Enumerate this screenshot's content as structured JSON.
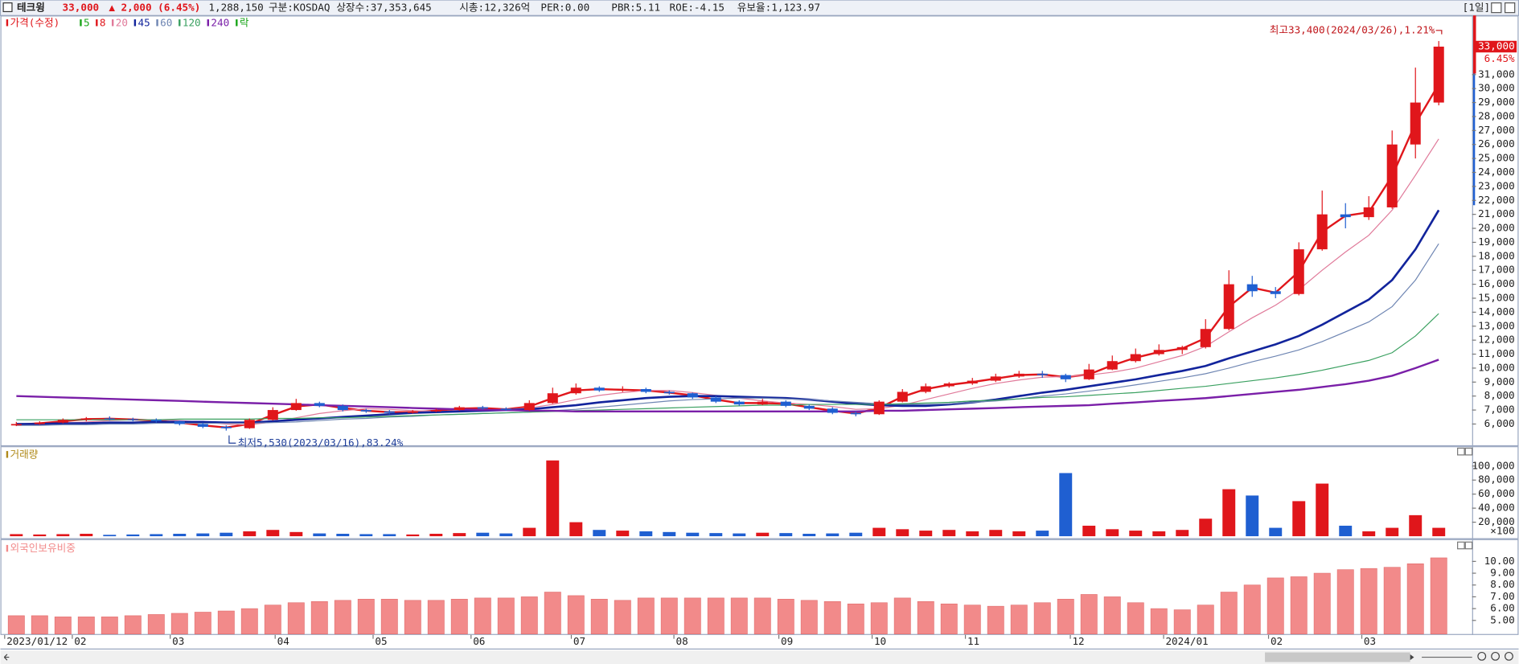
{
  "header": {
    "name": "테크윙",
    "price": "33,000",
    "change": "▲ 2,000 (6.45%)",
    "volume": "1,288,150",
    "market": "구분:KOSDAQ",
    "shares": "상장수:37,353,645",
    "cap": "시총:12,326억",
    "per": "PER:0.00",
    "pbr": "PBR:5.11",
    "roe": "ROE:-4.15",
    "reserve": "유보율:1,123.97",
    "period": "[1일]"
  },
  "chart_data": [
    {
      "type": "candlestick",
      "candles": {
        "name": "가격(수정)",
        "up_color": "#e0161b",
        "down_color": "#1f5fd1",
        "open": [
          5900,
          6000,
          6100,
          6300,
          6400,
          6350,
          6300,
          6200,
          6000,
          5800,
          5700,
          6300,
          7000,
          7500,
          7300,
          7000,
          6900,
          6800,
          6900,
          7000,
          7200,
          7100,
          7000,
          7500,
          8200,
          8600,
          8400,
          8500,
          8300,
          8200,
          7900,
          7600,
          7400,
          7600,
          7300,
          7100,
          6800,
          6700,
          7600,
          8300,
          8700,
          8900,
          9100,
          9400,
          9600,
          9500,
          9200,
          9900,
          10500,
          11000,
          11300,
          11500,
          12800,
          16000,
          15500,
          15300,
          18500,
          21000,
          20800,
          21500,
          26000,
          29000
        ],
        "high": [
          6150,
          6200,
          6400,
          6500,
          6550,
          6450,
          6400,
          6250,
          6100,
          5900,
          6400,
          7200,
          7800,
          7600,
          7400,
          7100,
          7000,
          7000,
          7100,
          7300,
          7300,
          7200,
          7700,
          8600,
          8900,
          8700,
          8700,
          8600,
          8400,
          8250,
          8000,
          7700,
          7800,
          7700,
          7400,
          7200,
          6900,
          7700,
          8500,
          8900,
          9000,
          9300,
          9600,
          9800,
          9800,
          9600,
          10300,
          10900,
          11400,
          11700,
          11600,
          13500,
          17000,
          16600,
          15800,
          19000,
          22700,
          21800,
          22300,
          27000,
          31500,
          33400
        ],
        "low": [
          5850,
          5950,
          6050,
          6200,
          6250,
          6200,
          6100,
          5900,
          5700,
          5530,
          5650,
          6250,
          6950,
          7200,
          6900,
          6800,
          6700,
          6750,
          6850,
          6950,
          7000,
          6950,
          6950,
          7450,
          8100,
          8300,
          8300,
          8200,
          8100,
          7800,
          7500,
          7300,
          7350,
          7200,
          7000,
          6700,
          6550,
          6650,
          7550,
          8200,
          8600,
          8800,
          9000,
          9300,
          9300,
          9000,
          9150,
          9850,
          10400,
          10900,
          11000,
          11400,
          12700,
          15100,
          15000,
          15200,
          18400,
          20000,
          20600,
          21400,
          25000,
          28800
        ],
        "close": [
          6000,
          6100,
          6300,
          6400,
          6350,
          6300,
          6200,
          6000,
          5800,
          5700,
          6300,
          7000,
          7500,
          7300,
          7000,
          6900,
          6800,
          6900,
          7000,
          7200,
          7100,
          7000,
          7500,
          8200,
          8600,
          8400,
          8500,
          8300,
          8200,
          7900,
          7600,
          7400,
          7600,
          7300,
          7100,
          6800,
          6700,
          7600,
          8300,
          8700,
          8900,
          9100,
          9400,
          9600,
          9500,
          9200,
          9900,
          10500,
          11000,
          11300,
          11500,
          12800,
          16000,
          15500,
          15300,
          18500,
          21000,
          20800,
          21500,
          26000,
          29000,
          33000
        ]
      },
      "series": [
        {
          "name": "5",
          "color": "#1aa51a"
        },
        {
          "name": "8",
          "color": "#e0161b",
          "width": 2,
          "values": [
            5950,
            6050,
            6200,
            6350,
            6380,
            6320,
            6250,
            6100,
            5900,
            5750,
            6000,
            6650,
            7250,
            7400,
            7150,
            6950,
            6850,
            6850,
            6950,
            7100,
            7150,
            7050,
            7250,
            7850,
            8400,
            8500,
            8450,
            8400,
            8250,
            8050,
            7750,
            7500,
            7500,
            7450,
            7200,
            6950,
            6750,
            7150,
            7950,
            8500,
            8800,
            9000,
            9250,
            9500,
            9550,
            9350,
            9550,
            10200,
            10750,
            11150,
            11400,
            12150,
            14400,
            15750,
            15400,
            16900,
            19750,
            20900,
            21150,
            23750,
            27500,
            30300
          ]
        },
        {
          "name": "20",
          "color": "#e07a9a",
          "width": 1,
          "values": [
            6000,
            6000,
            6050,
            6150,
            6250,
            6300,
            6300,
            6250,
            6150,
            6000,
            5950,
            6150,
            6450,
            6750,
            6950,
            7100,
            7050,
            6950,
            6900,
            6950,
            7000,
            7050,
            7150,
            7400,
            7750,
            8050,
            8250,
            8400,
            8400,
            8250,
            8050,
            7850,
            7650,
            7500,
            7400,
            7250,
            7050,
            7100,
            7350,
            7750,
            8150,
            8550,
            8900,
            9150,
            9350,
            9400,
            9500,
            9700,
            10000,
            10450,
            10900,
            11550,
            12600,
            13600,
            14500,
            15600,
            17000,
            18300,
            19500,
            21300,
            23800,
            26400
          ]
        },
        {
          "name": "45",
          "color": "#12249c",
          "width": 2.2,
          "values": [
            6000,
            6000,
            6050,
            6050,
            6100,
            6100,
            6150,
            6150,
            6150,
            6100,
            6100,
            6200,
            6300,
            6400,
            6500,
            6600,
            6700,
            6800,
            6850,
            6900,
            6950,
            7000,
            7050,
            7200,
            7350,
            7550,
            7700,
            7850,
            7950,
            8000,
            8000,
            7950,
            7900,
            7850,
            7750,
            7600,
            7450,
            7350,
            7300,
            7300,
            7400,
            7550,
            7750,
            8000,
            8250,
            8450,
            8700,
            8950,
            9200,
            9500,
            9800,
            10150,
            10700,
            11200,
            11700,
            12300,
            13100,
            14000,
            14900,
            16300,
            18500,
            21300
          ]
        },
        {
          "name": "60",
          "color": "#6f86b3",
          "width": 1,
          "values": [
            5900,
            5900,
            5950,
            5950,
            6000,
            6000,
            6050,
            6050,
            6050,
            6050,
            6050,
            6100,
            6150,
            6250,
            6350,
            6400,
            6500,
            6550,
            6650,
            6700,
            6750,
            6800,
            6850,
            6950,
            7050,
            7200,
            7350,
            7500,
            7650,
            7750,
            7800,
            7850,
            7850,
            7800,
            7750,
            7650,
            7550,
            7450,
            7400,
            7400,
            7450,
            7550,
            7650,
            7800,
            8000,
            8150,
            8350,
            8550,
            8800,
            9050,
            9300,
            9600,
            10000,
            10450,
            10850,
            11300,
            11900,
            12600,
            13300,
            14400,
            16300,
            18900
          ]
        },
        {
          "name": "120",
          "color": "#3aa060",
          "width": 1,
          "values": [
            6300,
            6300,
            6300,
            6300,
            6300,
            6300,
            6300,
            6350,
            6350,
            6350,
            6350,
            6400,
            6400,
            6450,
            6450,
            6500,
            6550,
            6600,
            6650,
            6700,
            6750,
            6800,
            6850,
            6900,
            6950,
            7000,
            7050,
            7100,
            7150,
            7200,
            7250,
            7300,
            7350,
            7350,
            7400,
            7400,
            7400,
            7400,
            7450,
            7500,
            7550,
            7650,
            7700,
            7800,
            7900,
            7950,
            8050,
            8150,
            8250,
            8400,
            8550,
            8700,
            8900,
            9100,
            9300,
            9550,
            9850,
            10200,
            10550,
            11100,
            12300,
            13900
          ]
        },
        {
          "name": "240",
          "color": "#7a1fa8",
          "width": 2,
          "values": [
            8000,
            7950,
            7900,
            7850,
            7800,
            7750,
            7700,
            7650,
            7600,
            7550,
            7500,
            7450,
            7400,
            7350,
            7300,
            7250,
            7200,
            7150,
            7100,
            7050,
            7000,
            7000,
            6950,
            6950,
            6900,
            6900,
            6900,
            6900,
            6900,
            6900,
            6900,
            6900,
            6900,
            6900,
            6900,
            6900,
            6900,
            6950,
            6950,
            7000,
            7050,
            7100,
            7150,
            7200,
            7250,
            7300,
            7350,
            7450,
            7550,
            7650,
            7750,
            7850,
            8000,
            8150,
            8300,
            8450,
            8650,
            8850,
            9100,
            9450,
            10000,
            10600
          ]
        },
        {
          "name": "락",
          "color": "#1aa51a"
        }
      ],
      "annotations": [
        {
          "text": "최고33,400(2024/03/26),1.21%",
          "color": "#c0161b",
          "at": 61
        },
        {
          "text": "최저5,530(2023/03/16),83.24%",
          "color": "#1f3f9a",
          "at": 9
        }
      ],
      "current_change": "6.45%",
      "xlim": [
        -0.6,
        61.6
      ],
      "ylim": [
        4550,
        35090
      ],
      "yticks": [
        {
          "value": 6000,
          "label": "6,000"
        },
        {
          "value": 7000,
          "label": "7,000"
        },
        {
          "value": 8000,
          "label": "8,000"
        },
        {
          "value": 9000,
          "label": "9,000"
        },
        {
          "value": 10000,
          "label": "10,000"
        },
        {
          "value": 11000,
          "label": "11,000"
        },
        {
          "value": 12000,
          "label": "12,000"
        },
        {
          "value": 13000,
          "label": "13,000"
        },
        {
          "value": 14000,
          "label": "14,000"
        },
        {
          "value": 15000,
          "label": "15,000"
        },
        {
          "value": 16000,
          "label": "16,000"
        },
        {
          "value": 17000,
          "label": "17,000"
        },
        {
          "value": 18000,
          "label": "18,000"
        },
        {
          "value": 19000,
          "label": "19,000"
        },
        {
          "value": 20000,
          "label": "20,000"
        },
        {
          "value": 21000,
          "label": "21,000"
        },
        {
          "value": 22000,
          "label": "22,000"
        },
        {
          "value": 23000,
          "label": "23,000"
        },
        {
          "value": 24000,
          "label": "24,000"
        },
        {
          "value": 25000,
          "label": "25,000"
        },
        {
          "value": 26000,
          "label": "26,000"
        },
        {
          "value": 27000,
          "label": "27,000"
        },
        {
          "value": 28000,
          "label": "28,000"
        },
        {
          "value": 29000,
          "label": "29,000"
        },
        {
          "value": 30000,
          "label": "30,000"
        },
        {
          "value": 31000,
          "label": "31,000"
        }
      ]
    },
    {
      "type": "bar",
      "title": "거래량",
      "unit_label": "×100",
      "color": "#b08a1a",
      "values": [
        3000,
        2500,
        3000,
        3500,
        2000,
        2500,
        3000,
        3500,
        4000,
        5000,
        7000,
        9000,
        6000,
        4000,
        3500,
        3000,
        3000,
        2500,
        3500,
        4500,
        5000,
        4000,
        12000,
        108000,
        20000,
        9000,
        8000,
        7000,
        6000,
        5000,
        4500,
        4000,
        5000,
        4500,
        3500,
        4000,
        5000,
        12000,
        10000,
        8000,
        9000,
        7000,
        9000,
        7000,
        8000,
        90000,
        15000,
        10000,
        8000,
        7000,
        9000,
        25000,
        67000,
        58000,
        12000,
        50000,
        75000,
        15000,
        7000,
        12000,
        30000,
        12000
      ],
      "ylim": [
        0,
        125500
      ],
      "yticks": [
        {
          "value": 20000,
          "label": "20,000"
        },
        {
          "value": 40000,
          "label": "40,000"
        },
        {
          "value": 60000,
          "label": "60,000"
        },
        {
          "value": 80000,
          "label": "80,000"
        },
        {
          "value": 100000,
          "label": "100,000"
        }
      ]
    },
    {
      "type": "bar",
      "title": "외국인보유비중",
      "color": "#f28a8a",
      "values": [
        5.4,
        5.4,
        5.3,
        5.3,
        5.3,
        5.4,
        5.5,
        5.6,
        5.7,
        5.8,
        6.0,
        6.3,
        6.5,
        6.6,
        6.7,
        6.8,
        6.8,
        6.7,
        6.7,
        6.8,
        6.9,
        6.9,
        7.0,
        7.4,
        7.1,
        6.8,
        6.7,
        6.9,
        6.9,
        6.9,
        6.9,
        6.9,
        6.9,
        6.8,
        6.7,
        6.6,
        6.4,
        6.5,
        6.9,
        6.6,
        6.4,
        6.3,
        6.2,
        6.3,
        6.5,
        6.8,
        7.2,
        7.0,
        6.5,
        6.0,
        5.9,
        6.3,
        7.4,
        8.0,
        8.6,
        8.7,
        9.0,
        9.3,
        9.4,
        9.5,
        9.8,
        10.3
      ],
      "ylim": [
        3.85,
        11.64
      ],
      "yticks": [
        {
          "value": 5,
          "label": "5.00"
        },
        {
          "value": 6,
          "label": "6.00"
        },
        {
          "value": 7,
          "label": "7.00"
        },
        {
          "value": 8,
          "label": "8.00"
        },
        {
          "value": 9,
          "label": "9.00"
        },
        {
          "value": 10,
          "label": "10.00"
        }
      ],
      "xticks": [
        {
          "value": -0.5,
          "label": "2023/01/12"
        },
        {
          "value": 2.4,
          "label": "02"
        },
        {
          "value": 6.6,
          "label": "03"
        },
        {
          "value": 11.1,
          "label": "04"
        },
        {
          "value": 15.3,
          "label": "05"
        },
        {
          "value": 19.5,
          "label": "06"
        },
        {
          "value": 23.8,
          "label": "07"
        },
        {
          "value": 28.2,
          "label": "08"
        },
        {
          "value": 32.7,
          "label": "09"
        },
        {
          "value": 36.7,
          "label": "10"
        },
        {
          "value": 40.7,
          "label": "11"
        },
        {
          "value": 45.2,
          "label": "12"
        },
        {
          "value": 49.2,
          "label": "2024/01"
        },
        {
          "value": 53.7,
          "label": "02"
        },
        {
          "value": 57.7,
          "label": "03"
        }
      ]
    }
  ]
}
